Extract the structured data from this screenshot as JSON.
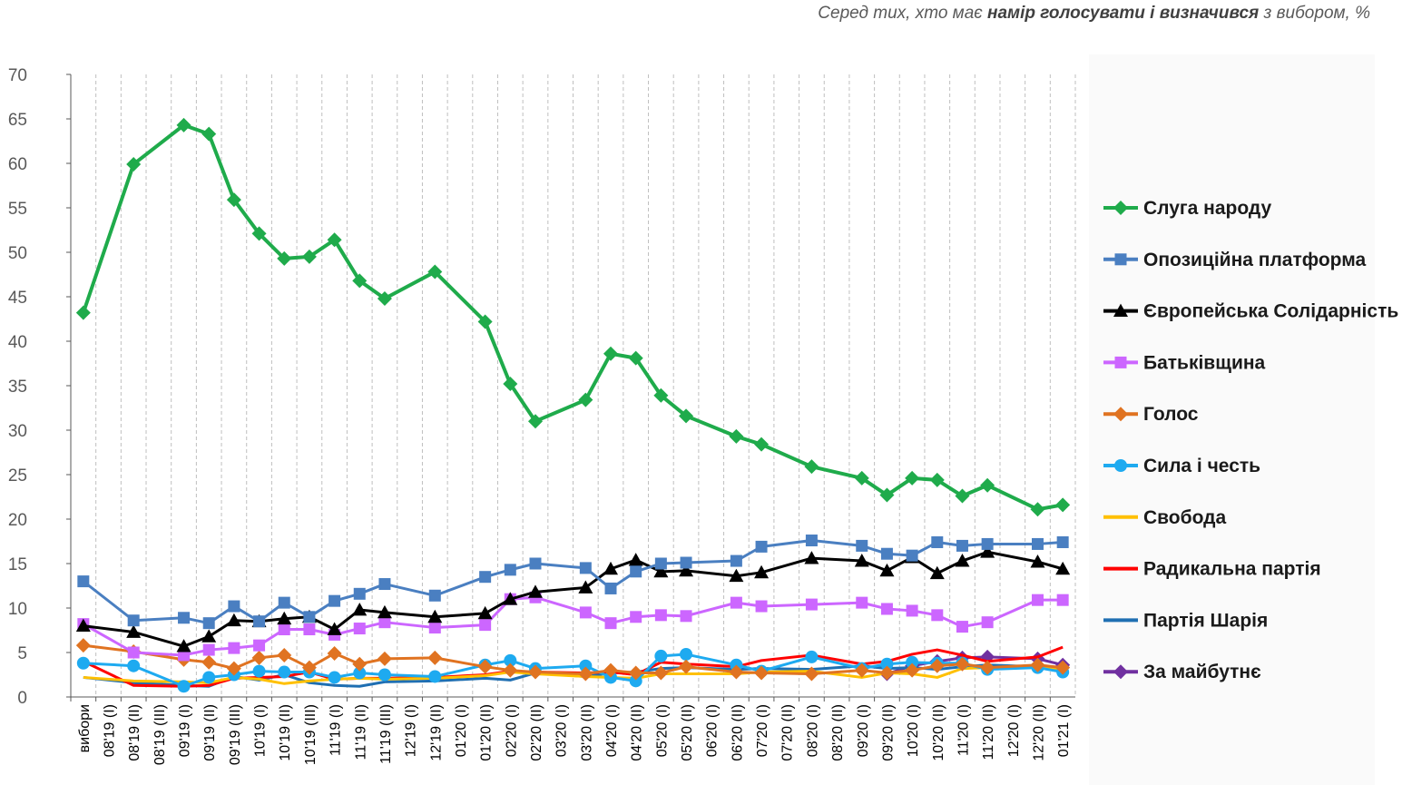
{
  "header": {
    "subtitle_pre": "Серед тих, хто має ",
    "subtitle_bold": "намір голосувати і визначився",
    "subtitle_post": " з вибором, %"
  },
  "chart_data": {
    "type": "line",
    "title": "",
    "xlabel": "",
    "ylabel": "",
    "ylim": [
      0,
      70
    ],
    "yticks": [
      0,
      5,
      10,
      15,
      20,
      25,
      30,
      35,
      40,
      45,
      50,
      55,
      60,
      65,
      70
    ],
    "grid": "vertical dashed",
    "legend": "right",
    "categories": [
      "вибори",
      "08'19 (I)",
      "08'19 (II)",
      "08'19 (III)",
      "09'19 (I)",
      "09'19 (II)",
      "09'19 (III)",
      "10'19 (I)",
      "10'19 (II)",
      "10'19 (III)",
      "11'19 (I)",
      "11'19 (II)",
      "11'19 (III)",
      "12'19 (I)",
      "12'19 (II)",
      "01'20 (I)",
      "01'20 (II)",
      "02'20 (I)",
      "02'20 (II)",
      "03'20 (I)",
      "03'20 (II)",
      "04'20 (I)",
      "04'20 (II)",
      "05'20 (I)",
      "05'20 (II)",
      "06'20 (I)",
      "06'20 (II)",
      "07'20 (I)",
      "07'20 (II)",
      "08'20 (I)",
      "08'20 (II)",
      "09'20 (I)",
      "09'20 (II)",
      "10'20 (I)",
      "10'20 (II)",
      "11'20 (I)",
      "11'20 (II)",
      "12'20 (I)",
      "12'20 (II)",
      "01'21 (I)"
    ],
    "series": [
      {
        "name": "Слуга народу",
        "color": "#1fab4b",
        "marker": "diamond",
        "values": [
          43.2,
          null,
          59.9,
          null,
          64.3,
          63.3,
          55.9,
          52.1,
          49.3,
          49.5,
          51.4,
          46.8,
          44.8,
          null,
          47.8,
          null,
          42.2,
          35.2,
          31.0,
          null,
          33.4,
          38.6,
          38.1,
          33.9,
          31.6,
          null,
          29.3,
          28.4,
          null,
          25.9,
          null,
          24.6,
          22.7,
          24.6,
          24.4,
          22.6,
          23.8,
          null,
          21.1,
          21.6
        ]
      },
      {
        "name": "Опозиційна платформа",
        "color": "#4a7fc1",
        "marker": "square",
        "values": [
          13.0,
          null,
          8.6,
          null,
          8.9,
          8.3,
          10.2,
          8.5,
          10.6,
          9.0,
          10.8,
          11.6,
          12.7,
          null,
          11.4,
          null,
          13.5,
          14.3,
          15.0,
          null,
          14.5,
          12.2,
          14.1,
          15.0,
          15.1,
          null,
          15.3,
          16.9,
          null,
          17.6,
          null,
          17.0,
          16.1,
          15.9,
          17.4,
          17.0,
          17.2,
          null,
          17.2,
          17.4
        ]
      },
      {
        "name": "Європейська Солідарність",
        "color": "#000000",
        "marker": "triangle",
        "values": [
          8.0,
          null,
          7.3,
          null,
          5.7,
          6.8,
          8.6,
          8.5,
          8.8,
          9.0,
          7.6,
          9.8,
          9.5,
          null,
          9.0,
          null,
          9.4,
          11.0,
          11.8,
          null,
          12.3,
          14.4,
          15.4,
          14.1,
          14.2,
          null,
          13.6,
          14.0,
          null,
          15.6,
          null,
          15.3,
          14.2,
          15.7,
          13.9,
          15.3,
          16.3,
          null,
          15.2,
          14.4
        ]
      },
      {
        "name": "Батьківщина",
        "color": "#cc66ff",
        "marker": "square",
        "values": [
          8.2,
          null,
          5.0,
          null,
          4.7,
          5.3,
          5.5,
          5.8,
          7.6,
          7.6,
          7.0,
          7.7,
          8.4,
          null,
          7.8,
          null,
          8.1,
          11.0,
          11.2,
          null,
          9.5,
          8.3,
          9.0,
          9.2,
          9.1,
          null,
          10.6,
          10.2,
          null,
          10.4,
          null,
          10.6,
          9.9,
          9.7,
          9.2,
          7.9,
          8.4,
          null,
          10.9,
          10.9
        ]
      },
      {
        "name": "Голос",
        "color": "#e07321",
        "marker": "diamond",
        "values": [
          5.8,
          null,
          5.1,
          null,
          4.2,
          3.9,
          3.2,
          4.4,
          4.7,
          3.3,
          4.9,
          3.7,
          4.3,
          null,
          4.4,
          null,
          3.4,
          3.0,
          2.8,
          null,
          2.6,
          3.0,
          2.7,
          2.7,
          3.4,
          null,
          2.8,
          2.7,
          null,
          2.6,
          null,
          3.0,
          2.7,
          3.0,
          3.5,
          3.7,
          3.3,
          null,
          3.6,
          3.3
        ]
      },
      {
        "name": "Сила і честь",
        "color": "#1eaaf0",
        "marker": "circle",
        "values": [
          3.8,
          null,
          3.5,
          null,
          1.2,
          2.2,
          2.5,
          2.9,
          2.8,
          2.8,
          2.2,
          2.7,
          2.5,
          null,
          2.3,
          null,
          3.6,
          4.1,
          3.2,
          null,
          3.5,
          2.2,
          1.8,
          4.6,
          4.8,
          null,
          3.6,
          2.9,
          null,
          4.5,
          null,
          3.2,
          3.7,
          3.9,
          3.8,
          3.8,
          3.1,
          null,
          3.3,
          2.8
        ]
      },
      {
        "name": "Свобода",
        "color": "#ffc000",
        "marker": "none",
        "values": [
          2.2,
          null,
          1.8,
          null,
          1.7,
          1.6,
          2.2,
          2.0,
          1.5,
          1.8,
          2.0,
          2.1,
          2.0,
          null,
          2.1,
          null,
          2.4,
          2.8,
          2.6,
          null,
          2.3,
          2.2,
          2.1,
          2.6,
          2.6,
          null,
          2.6,
          2.8,
          null,
          2.9,
          null,
          2.2,
          2.7,
          2.6,
          2.2,
          3.2,
          3.3,
          null,
          3.3,
          3.2
        ]
      },
      {
        "name": "Радикальна партія",
        "color": "#ff0000",
        "marker": "none",
        "values": [
          4.0,
          null,
          1.3,
          null,
          1.2,
          1.3,
          2.1,
          2.2,
          2.3,
          2.8,
          2.0,
          2.1,
          2.1,
          null,
          2.2,
          null,
          2.5,
          2.9,
          2.8,
          null,
          2.7,
          2.8,
          2.5,
          3.9,
          3.7,
          null,
          3.4,
          4.1,
          null,
          4.7,
          null,
          3.7,
          4.0,
          4.8,
          5.3,
          4.7,
          4.0,
          null,
          4.5,
          5.6
        ]
      },
      {
        "name": "Партія Шарія",
        "color": "#1f6fb2",
        "marker": "none",
        "values": [
          2.2,
          null,
          1.6,
          null,
          1.3,
          1.2,
          2.3,
          1.9,
          2.5,
          1.6,
          1.3,
          1.2,
          1.7,
          null,
          1.8,
          null,
          2.1,
          1.9,
          2.7,
          null,
          2.3,
          2.7,
          2.8,
          3.2,
          3.3,
          null,
          3.1,
          3.2,
          null,
          3.1,
          null,
          3.5,
          3.2,
          3.3,
          3.1,
          3.4,
          3.6,
          null,
          3.4,
          3.0
        ]
      },
      {
        "name": "За майбутнє",
        "color": "#7030a0",
        "marker": "diamond",
        "values": [
          null,
          null,
          null,
          null,
          null,
          null,
          null,
          null,
          null,
          null,
          null,
          null,
          null,
          null,
          null,
          null,
          null,
          null,
          null,
          null,
          null,
          null,
          null,
          null,
          null,
          null,
          null,
          null,
          null,
          null,
          null,
          null,
          2.6,
          3.5,
          4.0,
          4.4,
          4.5,
          null,
          4.3,
          3.6
        ]
      }
    ]
  }
}
